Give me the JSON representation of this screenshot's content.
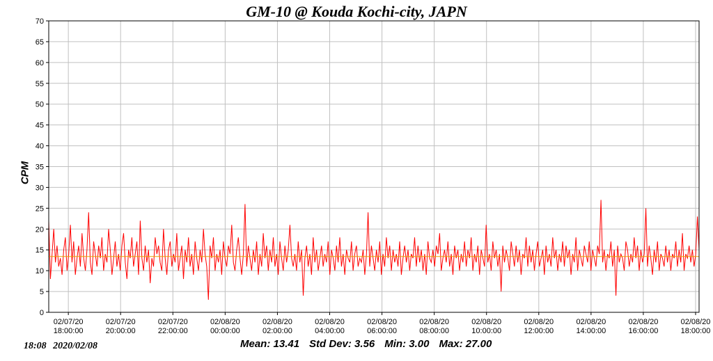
{
  "chart_data": {
    "type": "line",
    "title": "GM-10 @ Kouda Kochi-city, JAPN",
    "ylabel": "CPM",
    "xlabel": "",
    "ylim": [
      0,
      70
    ],
    "yticks": [
      0,
      5,
      10,
      15,
      20,
      25,
      30,
      35,
      40,
      45,
      50,
      55,
      60,
      65,
      70
    ],
    "x_range": [
      "2020/02/07 17:15",
      "2020/02/08 18:08"
    ],
    "x_ticks": [
      {
        "time": "2020/02/07 18:00",
        "date": "02/07/20",
        "clock": "18:00:00"
      },
      {
        "time": "2020/02/07 20:00",
        "date": "02/07/20",
        "clock": "20:00:00"
      },
      {
        "time": "2020/02/07 22:00",
        "date": "02/07/20",
        "clock": "22:00:00"
      },
      {
        "time": "2020/02/08 00:00",
        "date": "02/08/20",
        "clock": "00:00:00"
      },
      {
        "time": "2020/02/08 02:00",
        "date": "02/08/20",
        "clock": "02:00:00"
      },
      {
        "time": "2020/02/08 04:00",
        "date": "02/08/20",
        "clock": "04:00:00"
      },
      {
        "time": "2020/02/08 06:00",
        "date": "02/08/20",
        "clock": "06:00:00"
      },
      {
        "time": "2020/02/08 08:00",
        "date": "02/08/20",
        "clock": "08:00:00"
      },
      {
        "time": "2020/02/08 10:00",
        "date": "02/08/20",
        "clock": "10:00:00"
      },
      {
        "time": "2020/02/08 12:00",
        "date": "02/08/20",
        "clock": "12:00:00"
      },
      {
        "time": "2020/02/08 14:00",
        "date": "02/08/20",
        "clock": "14:00:00"
      },
      {
        "time": "2020/02/08 16:00",
        "date": "02/08/20",
        "clock": "16:00:00"
      },
      {
        "time": "2020/02/08 18:00",
        "date": "02/08/20",
        "clock": "18:00:00"
      }
    ],
    "grid": true,
    "series": [
      {
        "color": "#ff0000",
        "x_start": "2020/02/07 17:15",
        "x_end": "2020/02/08 18:08",
        "values": [
          22,
          8,
          14,
          20,
          12,
          16,
          11,
          13,
          9,
          15,
          18,
          10,
          14,
          21,
          12,
          17,
          9,
          13,
          16,
          11,
          19,
          13,
          10,
          15,
          24,
          12,
          9,
          17,
          14,
          11,
          16,
          13,
          18,
          10,
          14,
          12,
          20,
          15,
          9,
          13,
          17,
          11,
          14,
          10,
          16,
          19,
          12,
          8,
          15,
          13,
          18,
          11,
          14,
          17,
          9,
          22,
          13,
          10,
          16,
          12,
          15,
          7,
          13,
          11,
          18,
          14,
          16,
          12,
          10,
          20,
          13,
          9,
          15,
          17,
          11,
          14,
          12,
          19,
          10,
          13,
          16,
          8,
          15,
          12,
          18,
          11,
          14,
          9,
          17,
          13,
          10,
          15,
          12,
          20,
          14,
          11,
          3,
          16,
          13,
          18,
          10,
          14,
          12,
          15,
          9,
          17,
          13,
          11,
          16,
          14,
          21,
          12,
          10,
          15,
          18,
          13,
          9,
          14,
          26,
          11,
          16,
          13,
          10,
          15,
          12,
          17,
          9,
          14,
          11,
          19,
          13,
          16,
          10,
          15,
          12,
          18,
          11,
          14,
          9,
          17,
          13,
          10,
          16,
          12,
          15,
          21,
          13,
          11,
          14,
          10,
          17,
          12,
          15,
          4,
          13,
          16,
          11,
          14,
          9,
          18,
          12,
          15,
          10,
          13,
          16,
          11,
          14,
          12,
          17,
          9,
          15,
          13,
          10,
          16,
          12,
          18,
          11,
          14,
          9,
          15,
          13,
          12,
          17,
          10,
          14,
          16,
          11,
          13,
          12,
          15,
          9,
          14,
          24,
          11,
          16,
          13,
          10,
          15,
          12,
          17,
          9,
          14,
          11,
          18,
          13,
          16,
          10,
          15,
          12,
          14,
          11,
          17,
          9,
          13,
          16,
          12,
          15,
          10,
          14,
          13,
          18,
          11,
          16,
          12,
          15,
          10,
          14,
          9,
          17,
          13,
          12,
          15,
          11,
          16,
          14,
          19,
          10,
          13,
          15,
          12,
          17,
          11,
          14,
          9,
          16,
          13,
          15,
          10,
          14,
          12,
          17,
          11,
          15,
          13,
          18,
          10,
          14,
          12,
          16,
          9,
          15,
          13,
          11,
          21,
          12,
          14,
          10,
          17,
          13,
          15,
          11,
          14,
          5,
          16,
          12,
          15,
          13,
          10,
          17,
          14,
          11,
          16,
          12,
          15,
          9,
          14,
          13,
          18,
          11,
          16,
          12,
          15,
          10,
          14,
          17,
          11,
          13,
          15,
          9,
          16,
          12,
          14,
          11,
          18,
          13,
          15,
          10,
          14,
          12,
          17,
          11,
          16,
          13,
          15,
          9,
          14,
          12,
          18,
          10,
          15,
          13,
          11,
          16,
          14,
          12,
          17,
          10,
          15,
          13,
          11,
          16,
          14,
          27,
          12,
          15,
          10,
          14,
          13,
          17,
          11,
          15,
          4,
          16,
          12,
          14,
          13,
          10,
          17,
          15,
          11,
          14,
          12,
          18,
          13,
          16,
          10,
          15,
          12,
          14,
          25,
          11,
          16,
          13,
          9,
          15,
          12,
          17,
          10,
          14,
          13,
          11,
          16,
          12,
          15,
          10,
          14,
          13,
          17,
          11,
          15,
          12,
          19,
          10,
          14,
          13,
          16,
          12,
          15,
          11,
          14,
          23,
          15
        ]
      }
    ],
    "reference_line": {
      "value": 13.41,
      "color": "#e8a000"
    }
  },
  "stats": {
    "mean": "Mean: 13.41",
    "std_dev": "Std Dev: 3.56",
    "min": "Min: 3.00",
    "max": "Max: 27.00"
  },
  "timestamp": "18:08 2020/02/08"
}
